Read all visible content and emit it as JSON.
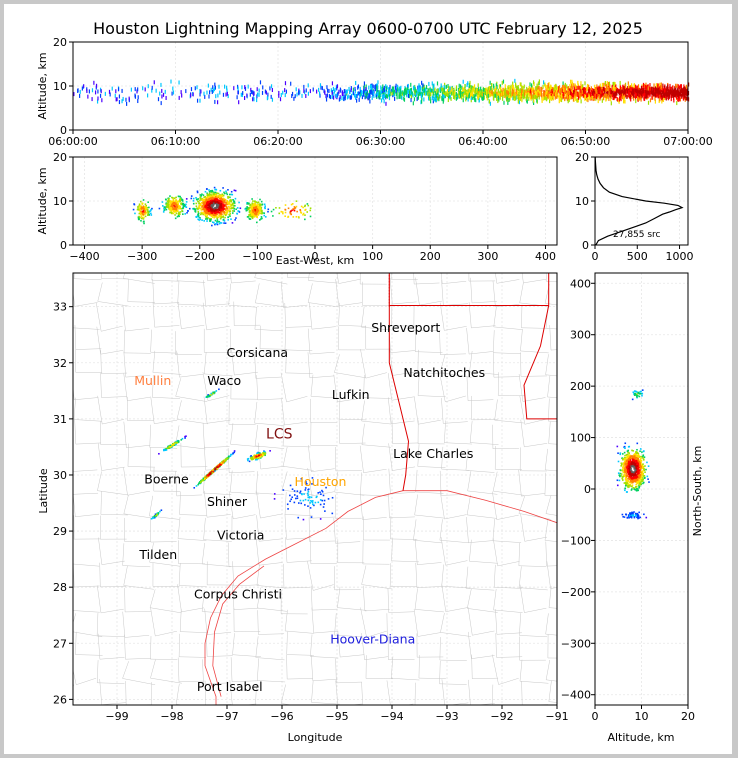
{
  "title": "Houston Lightning Mapping Array 0600-0700 UTC February 12, 2025",
  "colors": {
    "source_scale": [
      "#4b00ff",
      "#0040ff",
      "#00c8ff",
      "#00d060",
      "#a0e000",
      "#ffe000",
      "#ff8000",
      "#ff0000",
      "#c00000",
      "#606060",
      "#ffffff"
    ],
    "state_border": "#dd0000",
    "coast": "#ee4444",
    "county_border": "#c8c8c8",
    "grid": "#e6e6e6",
    "city_default": "#000000",
    "city_mullin": "#ff7f3f",
    "city_hoover": "#2020dd",
    "city_lcs": "#801010",
    "city_houston": "#ffa500"
  },
  "panels": {
    "time_height": {
      "ylabel": "Altitude, km",
      "yticks": [
        "0",
        "10",
        "20"
      ],
      "xticks": [
        "06:00:00",
        "06:10:00",
        "06:20:00",
        "06:30:00",
        "06:40:00",
        "06:50:00",
        "07:00:00"
      ]
    },
    "ew_height": {
      "ylabel": "Altitude, km",
      "xlabel": "East-West, km",
      "yticks": [
        "0",
        "10",
        "20"
      ],
      "xticks": [
        "−400",
        "−300",
        "−200",
        "−100",
        "0",
        "100",
        "200",
        "300",
        "400"
      ]
    },
    "histogram": {
      "annotation": "27,855 src",
      "xticks": [
        "0",
        "500",
        "1000"
      ],
      "yticks": [
        "0",
        "10",
        "20"
      ]
    },
    "map": {
      "xlabel": "Longitude",
      "ylabel": "Latitude",
      "xticks": [
        "−99",
        "−98",
        "−97",
        "−96",
        "−95",
        "−94",
        "−93",
        "−92",
        "−91"
      ],
      "yticks": [
        "26",
        "27",
        "28",
        "29",
        "30",
        "31",
        "32",
        "33"
      ],
      "cities": [
        {
          "name": "Shreveport",
          "lon": -93.75,
          "lat": 32.55,
          "style": "city_default"
        },
        {
          "name": "Corsicana",
          "lon": -96.45,
          "lat": 32.1,
          "style": "city_default"
        },
        {
          "name": "Mullin",
          "lon": -98.35,
          "lat": 31.6,
          "style": "city_mullin"
        },
        {
          "name": "Waco",
          "lon": -97.05,
          "lat": 31.6,
          "style": "city_default"
        },
        {
          "name": "Natchitoches",
          "lon": -93.05,
          "lat": 31.75,
          "style": "city_default"
        },
        {
          "name": "Lufkin",
          "lon": -94.75,
          "lat": 31.35,
          "style": "city_default"
        },
        {
          "name": "LCS",
          "lon": -96.05,
          "lat": 30.65,
          "style": "city_lcs"
        },
        {
          "name": "Lake Charles",
          "lon": -93.25,
          "lat": 30.3,
          "style": "city_default"
        },
        {
          "name": "Boerne",
          "lon": -98.1,
          "lat": 29.85,
          "style": "city_default"
        },
        {
          "name": "Houston",
          "lon": -95.3,
          "lat": 29.8,
          "style": "city_houston"
        },
        {
          "name": "Shiner",
          "lon": -97.0,
          "lat": 29.45,
          "style": "city_default"
        },
        {
          "name": "Victoria",
          "lon": -96.75,
          "lat": 28.85,
          "style": "city_default"
        },
        {
          "name": "Tilden",
          "lon": -98.25,
          "lat": 28.5,
          "style": "city_default"
        },
        {
          "name": "Corpus Christi",
          "lon": -96.8,
          "lat": 27.8,
          "style": "city_default"
        },
        {
          "name": "Hoover-Diana",
          "lon": -94.35,
          "lat": 27.0,
          "style": "city_hoover"
        },
        {
          "name": "Port Isabel",
          "lon": -96.95,
          "lat": 26.15,
          "style": "city_default"
        }
      ]
    },
    "ns_height": {
      "xlabel": "Altitude, km",
      "ylabel": "North-South, km",
      "xticks": [
        "0",
        "10",
        "20"
      ],
      "yticks": [
        "−400",
        "−300",
        "−200",
        "−100",
        "0",
        "100",
        "200",
        "300",
        "400"
      ]
    }
  },
  "chart_data": [
    {
      "type": "scatter",
      "title": "Houston Lightning Mapping Array 0600-0700 UTC February 12, 2025",
      "xlabel": "",
      "ylabel": "Altitude, km",
      "xlim": [
        "06:00:00",
        "07:00:00"
      ],
      "ylim": [
        0,
        20
      ],
      "description_values": {
        "activity_minutes": [
          [
            0,
            24,
            "sparse"
          ],
          [
            24,
            60,
            "dense"
          ]
        ],
        "altitude_band_km": [
          4,
          13
        ],
        "peak_density_minutes": [
          48,
          60
        ]
      }
    },
    {
      "type": "scatter",
      "xlabel": "East-West, km",
      "ylabel": "Altitude, km",
      "xlim": [
        -420,
        420
      ],
      "ylim": [
        0,
        20
      ],
      "clusters": [
        {
          "x_km": -300,
          "z_km": 8
        },
        {
          "x_km": -245,
          "z_km": 9
        },
        {
          "x_km": -175,
          "z_km": 9
        },
        {
          "x_km": -105,
          "z_km": 8
        },
        {
          "x_km": -40,
          "z_km": 8
        }
      ]
    },
    {
      "type": "line",
      "xlabel": "",
      "ylabel": "",
      "xlim": [
        0,
        1100
      ],
      "ylim": [
        0,
        20
      ],
      "annotation": "27,855 src",
      "altitude_km": [
        0,
        1,
        2,
        3,
        4,
        5,
        6,
        7,
        7.5,
        8,
        8.5,
        9,
        9.5,
        10,
        11,
        12,
        13,
        14,
        15,
        16,
        17,
        18,
        19,
        20
      ],
      "source_count": [
        10,
        40,
        150,
        300,
        450,
        600,
        700,
        800,
        880,
        950,
        1030,
        980,
        820,
        600,
        320,
        170,
        100,
        60,
        35,
        20,
        12,
        8,
        5,
        2
      ]
    },
    {
      "type": "scatter",
      "xlabel": "Longitude",
      "ylabel": "Latitude",
      "xlim": [
        -99.8,
        -91.0
      ],
      "ylim": [
        25.9,
        33.6
      ],
      "clusters": [
        {
          "lon": -97.25,
          "lat": 30.1
        },
        {
          "lon": -98.0,
          "lat": 30.55
        },
        {
          "lon": -98.3,
          "lat": 29.3
        },
        {
          "lon": -96.45,
          "lat": 30.35
        },
        {
          "lon": -97.3,
          "lat": 31.45
        },
        {
          "lon": -95.5,
          "lat": 29.6
        }
      ]
    },
    {
      "type": "scatter",
      "xlabel": "Altitude, km",
      "ylabel": "North-South, km",
      "xlim": [
        0,
        20
      ],
      "ylim": [
        -420,
        420
      ],
      "clusters": [
        {
          "z_km": 8,
          "y_km": 40
        },
        {
          "z_km": 9,
          "y_km": 185
        },
        {
          "z_km": 8,
          "y_km": -50
        }
      ]
    }
  ]
}
